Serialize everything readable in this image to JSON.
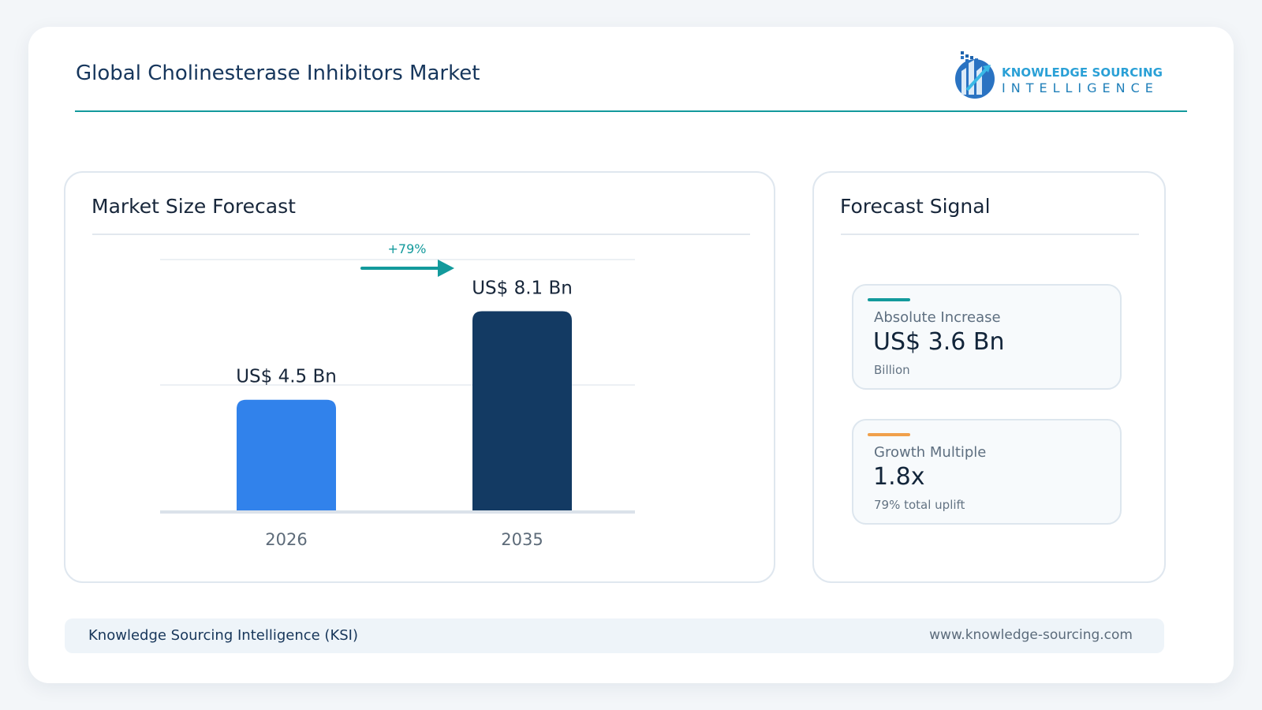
{
  "header": {
    "title": "Global Cholinesterase Inhibitors Market",
    "logo": {
      "line1": "KNOWLEDGE SOURCING",
      "line2": "INTELLIGENCE",
      "icon": "ksi-logo-icon"
    }
  },
  "chart_panel": {
    "title": "Market Size Forecast"
  },
  "chart_data": {
    "type": "bar",
    "title": "Market Size Forecast",
    "categories": [
      "2026",
      "2035"
    ],
    "values": [
      4.5,
      8.1
    ],
    "value_labels": [
      "US$ 4.5 Bn",
      "US$ 8.1 Bn"
    ],
    "bar_colors": [
      "#3182eb",
      "#133a63"
    ],
    "ylim": [
      0,
      10.2
    ],
    "grid": true,
    "growth_label": "+79%",
    "growth_color": "#139a9c"
  },
  "signal_panel": {
    "title": "Forecast Signal",
    "metrics": [
      {
        "label": "Absolute Increase",
        "value": "US$ 3.6 Bn",
        "sub": "Billion",
        "accent": "#139a9c"
      },
      {
        "label": "Growth Multiple",
        "value": "1.8x",
        "sub": "79% total uplift",
        "accent": "#f0a04b"
      }
    ]
  },
  "footer": {
    "left": "Knowledge Sourcing Intelligence (KSI)",
    "right": "www.knowledge-sourcing.com"
  }
}
